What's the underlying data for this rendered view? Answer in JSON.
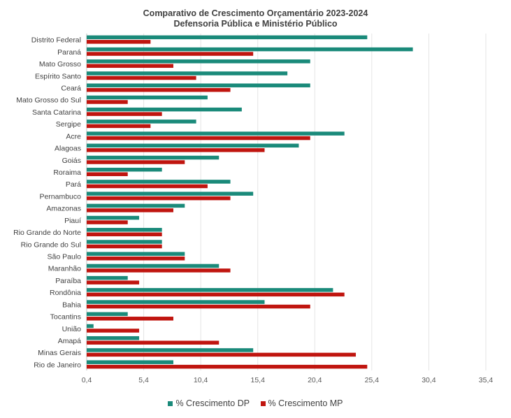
{
  "chart_data": {
    "type": "bar",
    "orientation": "horizontal",
    "title": "Comparativo de Crescimento Orçamentário 2023-2024",
    "subtitle": "Defensoria Pública e Ministério Público",
    "xlabel": "",
    "ylabel": "",
    "xlim": [
      0.4,
      35.4
    ],
    "xticks": [
      "0,4",
      "5,4",
      "10,4",
      "15,4",
      "20,4",
      "25,4",
      "30,4",
      "35,4"
    ],
    "xtick_values": [
      0.4,
      5.4,
      10.4,
      15.4,
      20.4,
      25.4,
      30.4,
      35.4
    ],
    "grid": true,
    "legend_position": "bottom",
    "categories": [
      "Distrito Federal",
      "Paraná",
      "Mato Grosso",
      "Espírito Santo",
      "Ceará",
      "Mato Grosso do Sul",
      "Santa Catarina",
      "Sergipe",
      "Acre",
      "Alagoas",
      "Goiás",
      "Roraima",
      "Pará",
      "Pernambuco",
      "Amazonas",
      "Piauí",
      "Rio Grande do Norte",
      "Rio Grande do Sul",
      "São Paulo",
      "Maranhão",
      "Paraíba",
      "Rondônia",
      "Bahia",
      "Tocantins",
      "União",
      "Amapá",
      "Minas Gerais",
      "Rio de Janeiro"
    ],
    "series": [
      {
        "name": "% Crescimento DP",
        "color": "#1a8a7a",
        "values": [
          25,
          29,
          20,
          18,
          20,
          11,
          14,
          10,
          23,
          19,
          12,
          7,
          13,
          15,
          9,
          5,
          7,
          7,
          9,
          12,
          4,
          22,
          16,
          4,
          1,
          5,
          15,
          8
        ]
      },
      {
        "name": "% Crescimento MP",
        "color": "#c0150f",
        "values": [
          6,
          15,
          8,
          10,
          13,
          4,
          7,
          6,
          20,
          16,
          9,
          4,
          11,
          13,
          8,
          4,
          7,
          7,
          9,
          13,
          5,
          23,
          20,
          8,
          5,
          12,
          24,
          25
        ]
      }
    ]
  }
}
